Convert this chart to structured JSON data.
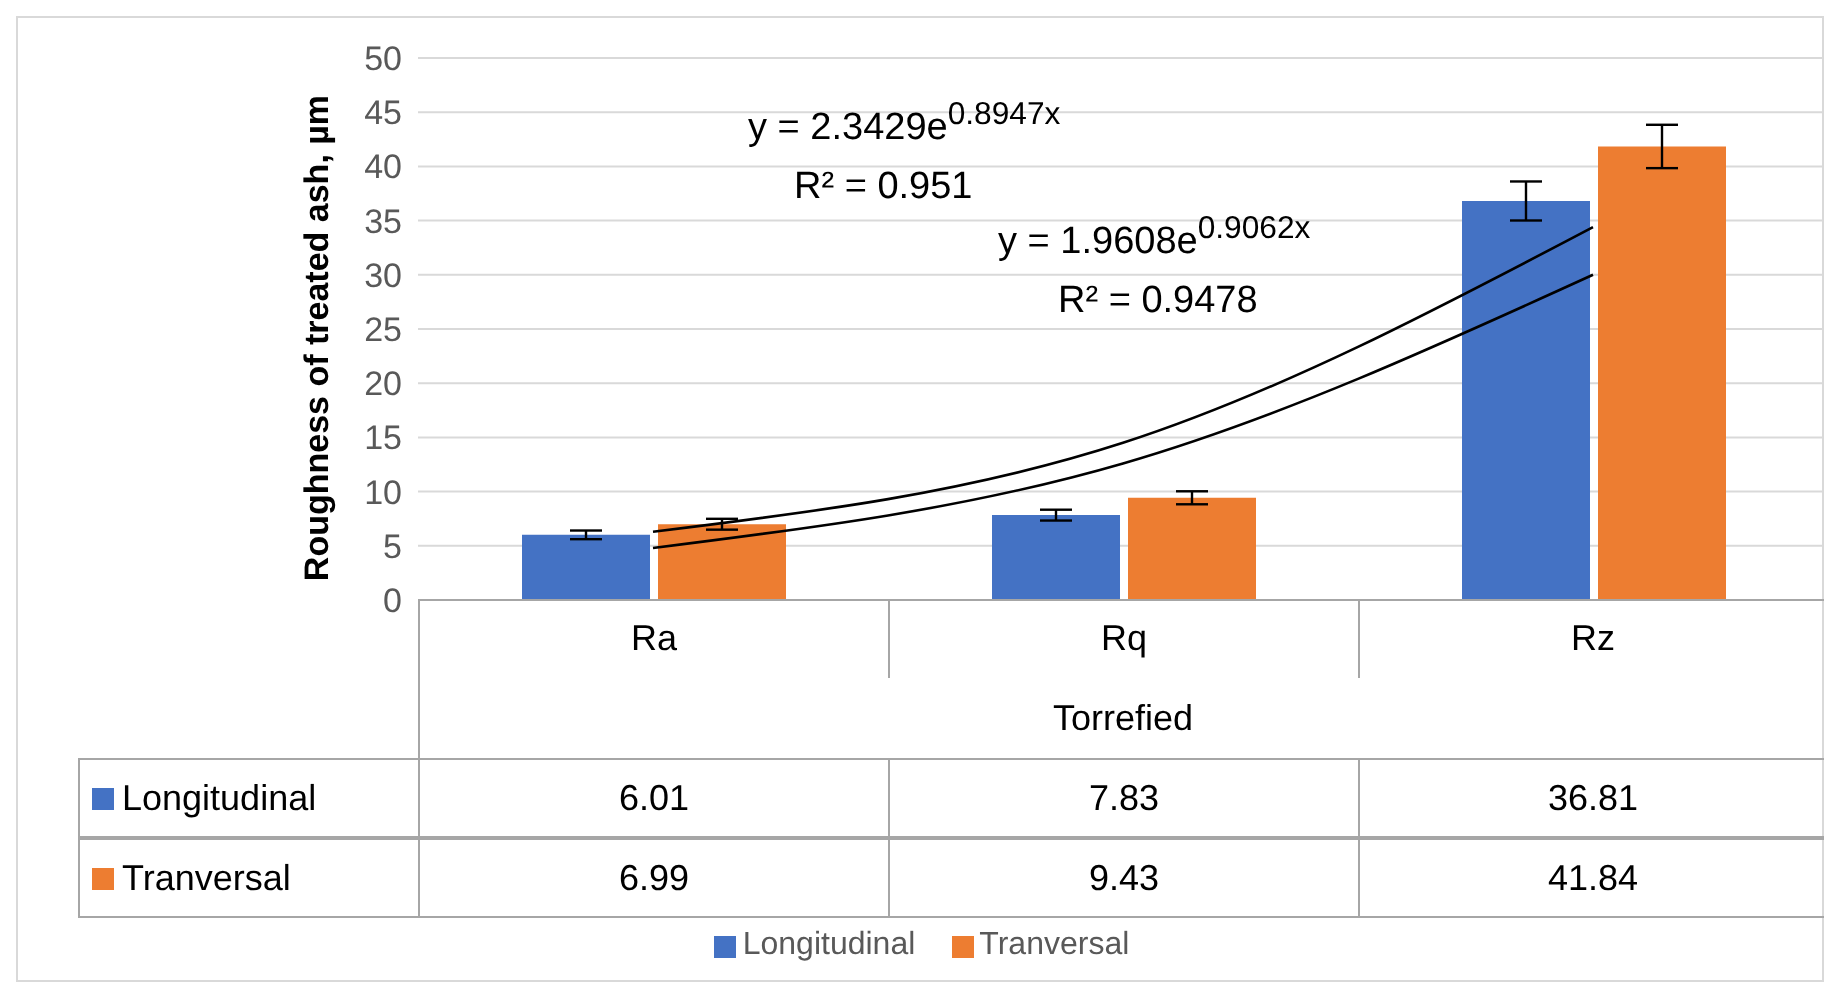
{
  "chart_data": {
    "type": "bar",
    "ylabel": "Roughness of treated ash, µm",
    "xlabel": "Torrefied",
    "categories": [
      "Ra",
      "Rq",
      "Rz"
    ],
    "series": [
      {
        "name": "Longitudinal",
        "color": "#4472c4",
        "values": [
          6.01,
          7.83,
          36.81
        ],
        "errors": [
          0.4,
          0.5,
          1.8
        ],
        "value_labels": [
          "6.01",
          "7.83",
          "36.81"
        ]
      },
      {
        "name": "Tranversal",
        "color": "#ed7d31",
        "values": [
          6.99,
          9.43,
          41.84
        ],
        "errors": [
          0.5,
          0.6,
          2.0
        ],
        "value_labels": [
          "6.99",
          "9.43",
          "41.84"
        ]
      },
      {
        "type": "line",
        "color": "#000000",
        "values": [
          6.3,
          14.5,
          34.4
        ]
      },
      {
        "type": "line",
        "color": "#000000",
        "values": [
          4.8,
          12.6,
          30.0
        ]
      }
    ],
    "ylim": [
      0,
      50
    ],
    "yticks": [
      0,
      5,
      10,
      15,
      20,
      25,
      30,
      35,
      40,
      45,
      50
    ],
    "grid": "y",
    "legend": "bottom",
    "marker": "none",
    "annotations": [
      "y = 2.3429e$^{0.8947x}$",
      "R² = 0.951",
      "y = 1.9608e$^{0.9062x}$",
      "R² = 0.9478"
    ]
  }
}
